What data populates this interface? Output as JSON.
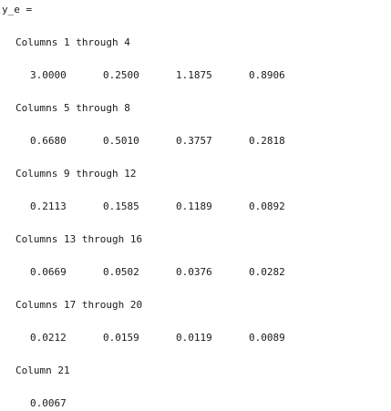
{
  "variable": "y_e =",
  "blocks": [
    {
      "header": "Columns 1 through 4",
      "values": [
        "3.0000",
        "0.2500",
        "1.1875",
        "0.8906"
      ]
    },
    {
      "header": "Columns 5 through 8",
      "values": [
        "0.6680",
        "0.5010",
        "0.3757",
        "0.2818"
      ]
    },
    {
      "header": "Columns 9 through 12",
      "values": [
        "0.2113",
        "0.1585",
        "0.1189",
        "0.0892"
      ]
    },
    {
      "header": "Columns 13 through 16",
      "values": [
        "0.0669",
        "0.0502",
        "0.0376",
        "0.0282"
      ]
    },
    {
      "header": "Columns 17 through 20",
      "values": [
        "0.0212",
        "0.0159",
        "0.0119",
        "0.0089"
      ]
    },
    {
      "header": "Column 21",
      "values": [
        "0.0067"
      ]
    }
  ]
}
